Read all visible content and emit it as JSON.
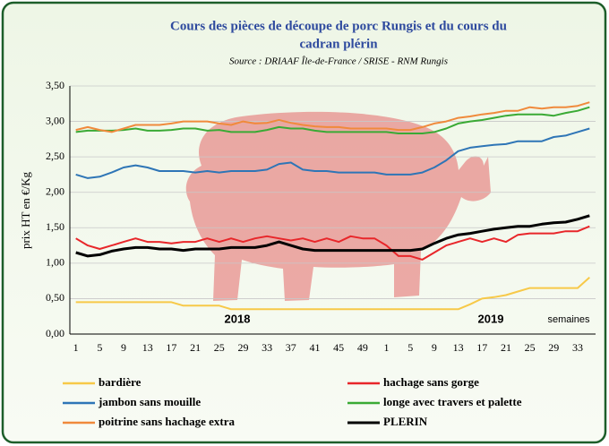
{
  "chart_data": {
    "type": "line",
    "title": "Cours des pièces de découpe de porc Rungis et du cours du cadran plérin",
    "subtitle": "Source : DRIAAF Île-de-France / SRISE - RNM Rungis",
    "y_label": "prix HT en €/Kg",
    "annotations": [
      "2018",
      "2019",
      "semaines"
    ],
    "categories": [
      "1",
      null,
      "5",
      null,
      "9",
      null,
      "13",
      null,
      "17",
      null,
      "21",
      null,
      "25",
      null,
      "29",
      null,
      "33",
      null,
      "37",
      null,
      "41",
      null,
      "45",
      null,
      "49",
      null,
      "1",
      null,
      "5",
      null,
      "9",
      null,
      "13",
      null,
      "17",
      null,
      "21",
      null,
      "25",
      null,
      "29",
      null,
      "33",
      null
    ],
    "ylim": [
      0,
      3.5
    ],
    "yticks": [
      {
        "value": 0,
        "label": "0,00"
      },
      {
        "value": 0.5,
        "label": "0,50"
      },
      {
        "value": 1,
        "label": "1,00"
      },
      {
        "value": 1.5,
        "label": "1,50"
      },
      {
        "value": 2,
        "label": "2,00"
      },
      {
        "value": 2.5,
        "label": "2,50"
      },
      {
        "value": 3,
        "label": "3,00"
      },
      {
        "value": 3.5,
        "label": "3,50"
      }
    ],
    "grid": true,
    "series": [
      {
        "name": "bardière",
        "color": "#f7c948",
        "values": [
          0.45,
          0.45,
          0.45,
          0.45,
          0.45,
          0.45,
          0.45,
          0.45,
          0.45,
          0.4,
          0.4,
          0.4,
          0.4,
          0.35,
          0.35,
          0.35,
          0.35,
          0.35,
          0.35,
          0.35,
          0.35,
          0.35,
          0.35,
          0.35,
          0.35,
          0.35,
          0.35,
          0.35,
          0.35,
          0.35,
          0.35,
          0.35,
          0.35,
          0.42,
          0.5,
          0.52,
          0.55,
          0.6,
          0.65,
          0.65,
          0.65,
          0.65,
          0.65,
          0.8
        ]
      },
      {
        "name": "hachage sans gorge",
        "color": "#e8262a",
        "values": [
          1.35,
          1.25,
          1.2,
          1.25,
          1.3,
          1.35,
          1.3,
          1.3,
          1.28,
          1.3,
          1.3,
          1.35,
          1.3,
          1.35,
          1.3,
          1.35,
          1.38,
          1.35,
          1.32,
          1.35,
          1.3,
          1.35,
          1.3,
          1.38,
          1.35,
          1.35,
          1.25,
          1.1,
          1.1,
          1.05,
          1.15,
          1.25,
          1.3,
          1.35,
          1.3,
          1.35,
          1.3,
          1.4,
          1.42,
          1.42,
          1.42,
          1.45,
          1.45,
          1.52
        ]
      },
      {
        "name": "jambon sans mouille",
        "color": "#2e75b6",
        "values": [
          2.25,
          2.2,
          2.22,
          2.28,
          2.35,
          2.38,
          2.35,
          2.3,
          2.3,
          2.3,
          2.28,
          2.3,
          2.28,
          2.3,
          2.3,
          2.3,
          2.32,
          2.4,
          2.42,
          2.32,
          2.3,
          2.3,
          2.28,
          2.28,
          2.28,
          2.28,
          2.25,
          2.25,
          2.25,
          2.28,
          2.35,
          2.45,
          2.58,
          2.63,
          2.65,
          2.67,
          2.68,
          2.72,
          2.72,
          2.72,
          2.78,
          2.8,
          2.85,
          2.9
        ]
      },
      {
        "name": "longe avec travers et palette",
        "color": "#3aaa35",
        "values": [
          2.85,
          2.87,
          2.87,
          2.87,
          2.88,
          2.9,
          2.87,
          2.87,
          2.88,
          2.9,
          2.9,
          2.87,
          2.88,
          2.85,
          2.85,
          2.85,
          2.88,
          2.92,
          2.9,
          2.9,
          2.87,
          2.85,
          2.85,
          2.85,
          2.85,
          2.85,
          2.85,
          2.83,
          2.83,
          2.83,
          2.85,
          2.9,
          2.97,
          3.0,
          3.02,
          3.05,
          3.08,
          3.1,
          3.1,
          3.1,
          3.08,
          3.12,
          3.15,
          3.2
        ]
      },
      {
        "name": "poitrine sans hachage extra",
        "color": "#f08a3c",
        "values": [
          2.88,
          2.92,
          2.88,
          2.85,
          2.9,
          2.95,
          2.95,
          2.95,
          2.97,
          3.0,
          3.0,
          3.0,
          2.97,
          2.95,
          3.0,
          2.97,
          2.98,
          3.02,
          2.98,
          2.95,
          2.93,
          2.92,
          2.92,
          2.9,
          2.9,
          2.9,
          2.9,
          2.88,
          2.88,
          2.92,
          2.97,
          3.0,
          3.05,
          3.07,
          3.1,
          3.12,
          3.15,
          3.15,
          3.2,
          3.18,
          3.2,
          3.2,
          3.22,
          3.27
        ]
      },
      {
        "name": "PLERIN",
        "color": "#000000",
        "values": [
          1.15,
          1.1,
          1.12,
          1.17,
          1.2,
          1.22,
          1.22,
          1.2,
          1.2,
          1.18,
          1.2,
          1.2,
          1.2,
          1.22,
          1.22,
          1.22,
          1.25,
          1.3,
          1.25,
          1.2,
          1.18,
          1.18,
          1.18,
          1.18,
          1.18,
          1.18,
          1.18,
          1.18,
          1.18,
          1.2,
          1.28,
          1.35,
          1.4,
          1.42,
          1.45,
          1.48,
          1.5,
          1.52,
          1.52,
          1.55,
          1.57,
          1.58,
          1.62,
          1.67
        ]
      }
    ]
  }
}
